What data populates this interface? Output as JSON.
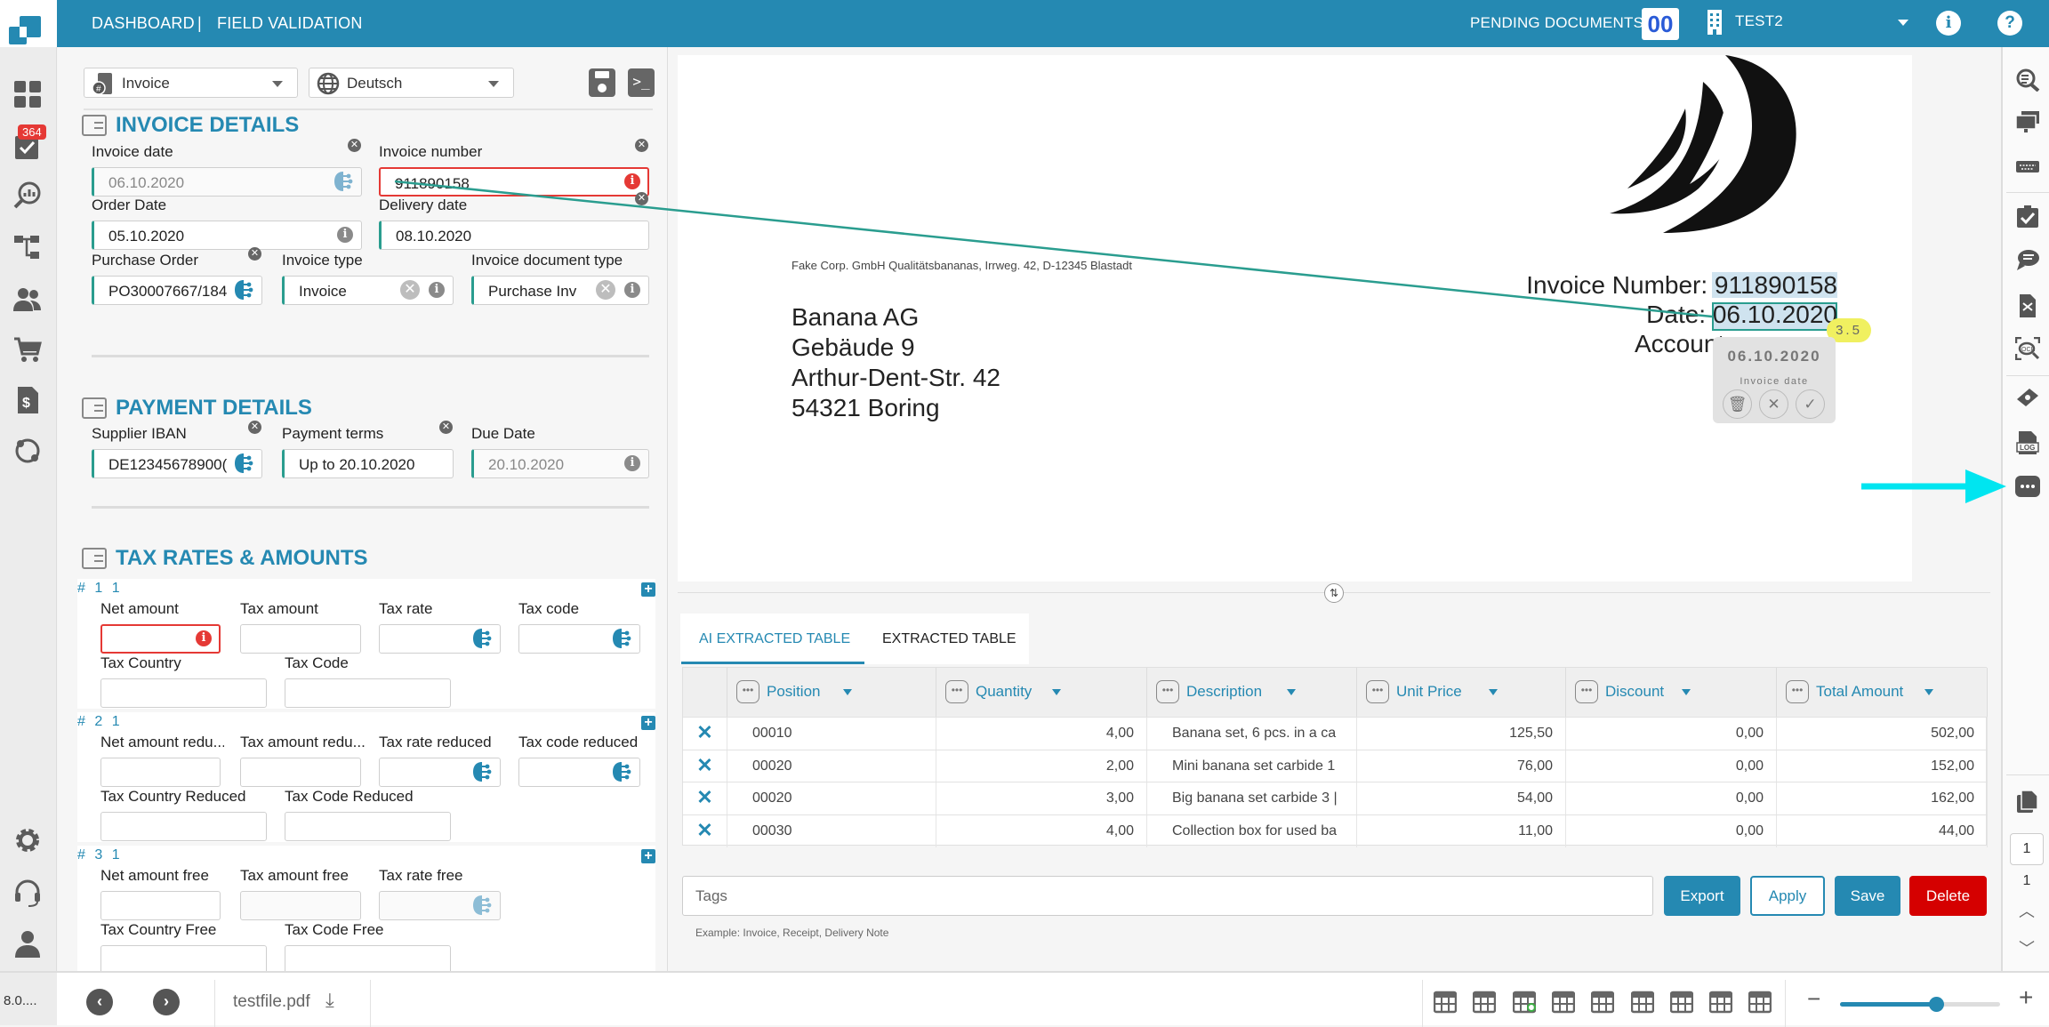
{
  "topbar": {
    "nav_dashboard": "DASHBOARD",
    "nav_separator": "|",
    "nav_field_validation": "FIELD VALIDATION",
    "pending_label": "PENDING DOCUMENTS:",
    "pending_count": "00",
    "tenant": "TEST2",
    "brand_color": "#2589b2"
  },
  "leftnav": {
    "badge": "364",
    "version": "8.0....",
    "icons": [
      "dashboard-icon",
      "tasks-icon",
      "analytics-icon",
      "workflow-icon",
      "users-icon",
      "cart-icon",
      "invoice-icon",
      "integration-icon",
      "settings-icon",
      "support-icon",
      "user-icon"
    ]
  },
  "toolbar": {
    "doc_type": "Invoice",
    "language": "Deutsch"
  },
  "invoice_details": {
    "title": "INVOICE DETAILS",
    "fields": [
      {
        "label": "Invoice date",
        "value": "06.10.2020"
      },
      {
        "label": "Invoice number",
        "value": "911890158"
      },
      {
        "label": "Order Date",
        "value": "05.10.2020"
      },
      {
        "label": "Delivery date",
        "value": "08.10.2020"
      },
      {
        "label": "Purchase Order",
        "value": "PO30007667/184"
      },
      {
        "label": "Invoice type",
        "value": "Invoice"
      },
      {
        "label": "Invoice document type",
        "value": "Purchase Inv"
      }
    ]
  },
  "payment_details": {
    "title": "PAYMENT DETAILS",
    "fields": [
      {
        "label": "Supplier IBAN",
        "value": "DE12345678900("
      },
      {
        "label": "Payment terms",
        "value": "Up to 20.10.2020"
      },
      {
        "label": "Due Date",
        "value": "20.10.2020"
      }
    ]
  },
  "tax": {
    "title": "TAX RATES & AMOUNTS",
    "groups": [
      {
        "number": "# 1 1",
        "fields": [
          {
            "label": "Net amount",
            "value": ""
          },
          {
            "label": "Tax amount",
            "value": ""
          },
          {
            "label": "Tax rate",
            "value": ""
          },
          {
            "label": "Tax code",
            "value": ""
          },
          {
            "label": "Tax Country",
            "value": ""
          },
          {
            "label": "Tax Code",
            "value": ""
          }
        ]
      },
      {
        "number": "# 2 1",
        "fields": [
          {
            "label": "Net amount redu...",
            "value": ""
          },
          {
            "label": "Tax amount redu...",
            "value": ""
          },
          {
            "label": "Tax rate reduced",
            "value": ""
          },
          {
            "label": "Tax code reduced",
            "value": ""
          },
          {
            "label": "Tax Country Reduced",
            "value": ""
          },
          {
            "label": "Tax Code Reduced",
            "value": ""
          }
        ]
      },
      {
        "number": "# 3 1",
        "fields": [
          {
            "label": "Net amount free",
            "value": ""
          },
          {
            "label": "Tax amount free",
            "value": ""
          },
          {
            "label": "Tax rate free",
            "value": ""
          },
          {
            "label": "Tax Country Free",
            "value": ""
          },
          {
            "label": "Tax Code Free",
            "value": ""
          }
        ]
      }
    ]
  },
  "document": {
    "sender_line": "Fake Corp. GmbH Qualitätsbananas, Irrweg. 42, D-12345 Blastadt",
    "address": [
      "Banana AG",
      "Gebäude 9",
      "Arthur-Dent-Str. 42",
      "54321 Boring"
    ],
    "invoice_number_label": "Invoice Number: ",
    "invoice_number_value": "911890158",
    "date_label": "Date: ",
    "date_value": "06.10.2020",
    "account_label": "Account",
    "confidence": "3.5",
    "popup": {
      "value": "06.10.2020",
      "field": "Invoice date"
    }
  },
  "table": {
    "tabs": [
      "AI EXTRACTED TABLE",
      "EXTRACTED TABLE"
    ],
    "active_tab": 0,
    "columns": [
      "Position",
      "Quantity",
      "Description",
      "Unit Price",
      "Discount",
      "Total Amount"
    ],
    "rows": [
      [
        "00010",
        "4,00",
        "Banana set, 6 pcs. in a ca",
        "125,50",
        "0,00",
        "502,00"
      ],
      [
        "00020",
        "2,00",
        "Mini banana set carbide 1",
        "76,00",
        "0,00",
        "152,00"
      ],
      [
        "00020",
        "3,00",
        "Big banana set carbide 3 |",
        "54,00",
        "0,00",
        "162,00"
      ],
      [
        "00030",
        "4,00",
        "Collection box for used ba",
        "11,00",
        "0,00",
        "44,00"
      ]
    ]
  },
  "tags": {
    "placeholder": "Tags",
    "hint": "Example: Invoice, Receipt, Delivery Note"
  },
  "actions": {
    "export": "Export",
    "apply": "Apply",
    "save": "Save",
    "delete": "Delete"
  },
  "rightbar": {
    "icons": [
      "search-document-icon",
      "screens-icon",
      "keyboard-icon",
      "checklist-icon",
      "comment-icon",
      "file-compare-icon",
      "ocr-icon",
      "ticket-icon",
      "log-icon",
      "more-icon"
    ],
    "page_input": "1",
    "page_total": "1"
  },
  "bottombar": {
    "filename": "testfile.pdf",
    "zoom_level": 0.6
  }
}
